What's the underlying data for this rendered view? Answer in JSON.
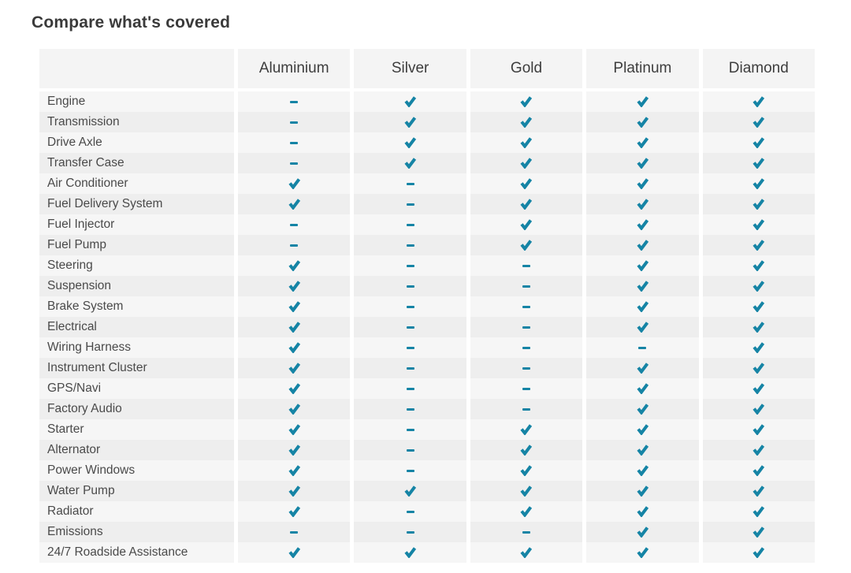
{
  "colors": {
    "accent": "#1584a5",
    "header_bg": "#f4f4f4",
    "row_odd_bg": "#f6f6f6",
    "row_even_bg": "#eeeeee",
    "title_color": "#3a3a3a",
    "label_color": "#4a4a4a",
    "header_text": "#3d3d3d"
  },
  "page": {
    "title": "Compare what's covered"
  },
  "table": {
    "corner_label": "",
    "plans": [
      "Aluminium",
      "Silver",
      "Gold",
      "Platinum",
      "Diamond"
    ],
    "marks": {
      "covered_icon": "check-icon",
      "not_covered_icon": "dash-icon"
    },
    "rows": [
      {
        "label": "Engine",
        "covered": [
          false,
          true,
          true,
          true,
          true
        ]
      },
      {
        "label": "Transmission",
        "covered": [
          false,
          true,
          true,
          true,
          true
        ]
      },
      {
        "label": "Drive Axle",
        "covered": [
          false,
          true,
          true,
          true,
          true
        ]
      },
      {
        "label": "Transfer Case",
        "covered": [
          false,
          true,
          true,
          true,
          true
        ]
      },
      {
        "label": "Air Conditioner",
        "covered": [
          true,
          false,
          true,
          true,
          true
        ]
      },
      {
        "label": "Fuel Delivery System",
        "covered": [
          true,
          false,
          true,
          true,
          true
        ]
      },
      {
        "label": "Fuel Injector",
        "covered": [
          false,
          false,
          true,
          true,
          true
        ]
      },
      {
        "label": "Fuel Pump",
        "covered": [
          false,
          false,
          true,
          true,
          true
        ]
      },
      {
        "label": "Steering",
        "covered": [
          true,
          false,
          false,
          true,
          true
        ]
      },
      {
        "label": "Suspension",
        "covered": [
          true,
          false,
          false,
          true,
          true
        ]
      },
      {
        "label": "Brake System",
        "covered": [
          true,
          false,
          false,
          true,
          true
        ]
      },
      {
        "label": "Electrical",
        "covered": [
          true,
          false,
          false,
          true,
          true
        ]
      },
      {
        "label": "Wiring Harness",
        "covered": [
          true,
          false,
          false,
          false,
          true
        ]
      },
      {
        "label": "Instrument Cluster",
        "covered": [
          true,
          false,
          false,
          true,
          true
        ]
      },
      {
        "label": "GPS/Navi",
        "covered": [
          true,
          false,
          false,
          true,
          true
        ]
      },
      {
        "label": "Factory Audio",
        "covered": [
          true,
          false,
          false,
          true,
          true
        ]
      },
      {
        "label": "Starter",
        "covered": [
          true,
          false,
          true,
          true,
          true
        ]
      },
      {
        "label": "Alternator",
        "covered": [
          true,
          false,
          true,
          true,
          true
        ]
      },
      {
        "label": "Power Windows",
        "covered": [
          true,
          false,
          true,
          true,
          true
        ]
      },
      {
        "label": "Water Pump",
        "covered": [
          true,
          true,
          true,
          true,
          true
        ]
      },
      {
        "label": "Radiator",
        "covered": [
          true,
          false,
          true,
          true,
          true
        ]
      },
      {
        "label": "Emissions",
        "covered": [
          false,
          false,
          false,
          true,
          true
        ]
      },
      {
        "label": "24/7 Roadside Assistance",
        "covered": [
          true,
          true,
          true,
          true,
          true
        ]
      }
    ]
  }
}
